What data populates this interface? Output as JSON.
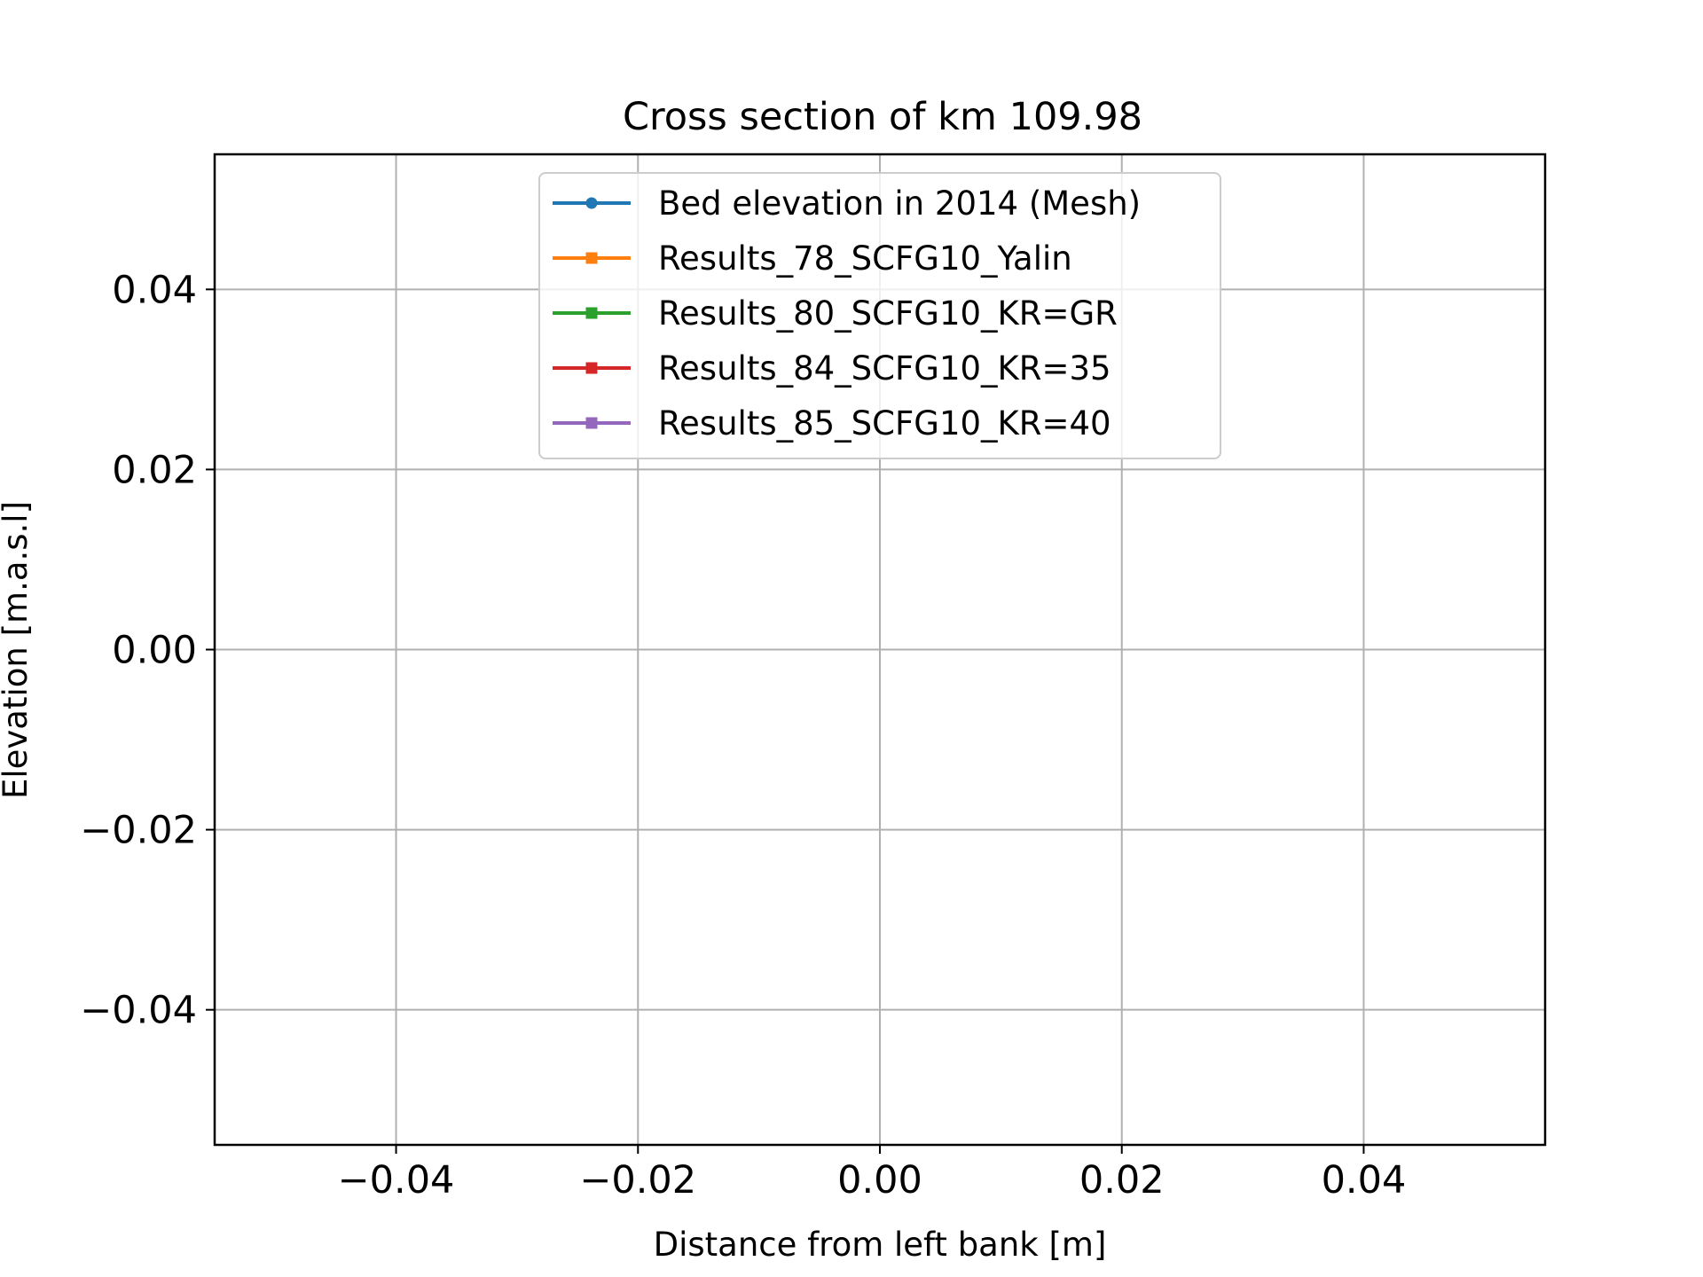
{
  "chart_data": {
    "type": "line",
    "title": "Cross section of km 109.98",
    "xlabel": "Distance from left bank [m]",
    "ylabel": "Elevation [m.a.s.l]",
    "xlim": [
      -0.055,
      0.055
    ],
    "ylim": [
      -0.055,
      0.055
    ],
    "xticks": [
      -0.04,
      -0.02,
      0.0,
      0.02,
      0.04
    ],
    "yticks": [
      -0.04,
      -0.02,
      0.0,
      0.02,
      0.04
    ],
    "xtick_labels": [
      "−0.04",
      "−0.02",
      "0.00",
      "0.02",
      "0.04"
    ],
    "ytick_labels": [
      "−0.04",
      "−0.02",
      "0.00",
      "0.02",
      "0.04"
    ],
    "grid": true,
    "legend_position": "upper center",
    "series": [
      {
        "name": "Bed elevation in 2014 (Mesh)",
        "color": "#1f77b4",
        "marker": "circle",
        "x": [],
        "y": []
      },
      {
        "name": "Results_78_SCFG10_Yalin",
        "color": "#ff7f0e",
        "marker": "square",
        "x": [],
        "y": []
      },
      {
        "name": "Results_80_SCFG10_KR=GR",
        "color": "#2ca02c",
        "marker": "square",
        "x": [],
        "y": []
      },
      {
        "name": "Results_84_SCFG10_KR=35",
        "color": "#d62728",
        "marker": "square",
        "x": [],
        "y": []
      },
      {
        "name": "Results_85_SCFG10_KR=40",
        "color": "#9467bd",
        "marker": "square",
        "x": [],
        "y": []
      }
    ]
  }
}
